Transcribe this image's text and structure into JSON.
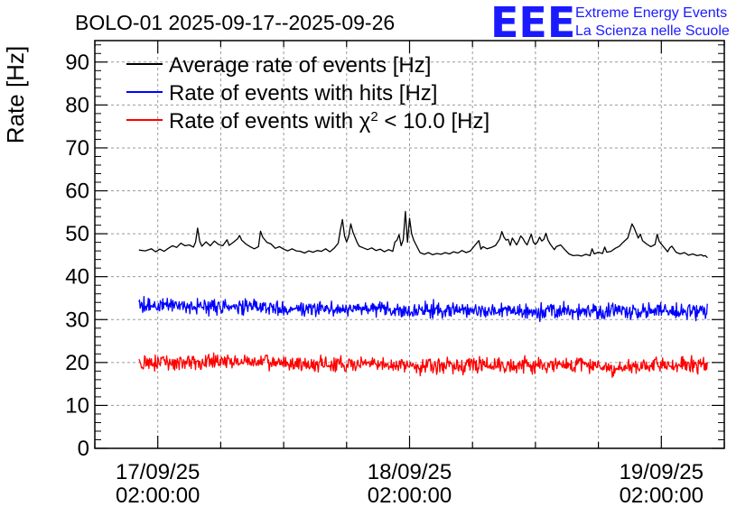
{
  "logo": {
    "mark": "EEE",
    "line1": "Extreme Energy Events",
    "line2": "La Scienza nelle Scuole",
    "color": "#1a1aff"
  },
  "chart_data": {
    "type": "line",
    "title": "BOLO-01 2025-09-17--2025-09-26",
    "ylabel": "Rate [Hz]",
    "xlabel": "",
    "ylim": [
      0,
      95
    ],
    "y_ticks": [
      0,
      10,
      20,
      30,
      40,
      50,
      60,
      70,
      80,
      90
    ],
    "x_range_hours": [
      -3,
      27
    ],
    "x_major_ticks": [
      {
        "hour": 0,
        "date": "17/09/25",
        "time": "02:00:00"
      },
      {
        "hour": 12,
        "date": "18/09/25",
        "time": "02:00:00"
      },
      {
        "hour": 24,
        "date": "19/09/25",
        "time": "02:00:00"
      }
    ],
    "grid": true,
    "legend_position": "top-left",
    "series": [
      {
        "name_parts": [
          "Average rate of events [Hz]"
        ],
        "color": "#000000",
        "noise": 0,
        "points": [
          [
            -0.9,
            46.2
          ],
          [
            -0.6,
            46.0
          ],
          [
            -0.3,
            46.5
          ],
          [
            -0.1,
            45.8
          ],
          [
            0.1,
            46.4
          ],
          [
            0.3,
            45.9
          ],
          [
            0.5,
            46.6
          ],
          [
            0.7,
            47.2
          ],
          [
            0.9,
            46.8
          ],
          [
            1.1,
            47.8
          ],
          [
            1.3,
            47.2
          ],
          [
            1.5,
            47.4
          ],
          [
            1.7,
            46.9
          ],
          [
            1.8,
            48.0
          ],
          [
            1.9,
            51.3
          ],
          [
            2.0,
            48.2
          ],
          [
            2.1,
            47.1
          ],
          [
            2.3,
            48.1
          ],
          [
            2.5,
            47.2
          ],
          [
            2.7,
            48.3
          ],
          [
            2.9,
            47.5
          ],
          [
            3.1,
            47.2
          ],
          [
            3.3,
            48.6
          ],
          [
            3.4,
            47.3
          ],
          [
            3.6,
            48.0
          ],
          [
            3.8,
            48.8
          ],
          [
            3.9,
            49.6
          ],
          [
            4.0,
            48.5
          ],
          [
            4.2,
            47.6
          ],
          [
            4.4,
            47.0
          ],
          [
            4.6,
            46.5
          ],
          [
            4.8,
            47.0
          ],
          [
            4.9,
            50.6
          ],
          [
            5.0,
            49.2
          ],
          [
            5.2,
            48.0
          ],
          [
            5.4,
            47.6
          ],
          [
            5.6,
            46.6
          ],
          [
            5.8,
            47.0
          ],
          [
            6.0,
            46.4
          ],
          [
            6.2,
            46.0
          ],
          [
            6.4,
            46.5
          ],
          [
            6.6,
            46.0
          ],
          [
            6.8,
            45.9
          ],
          [
            7.0,
            45.5
          ],
          [
            7.2,
            46.0
          ],
          [
            7.4,
            45.7
          ],
          [
            7.6,
            46.1
          ],
          [
            7.8,
            45.9
          ],
          [
            8.0,
            46.5
          ],
          [
            8.2,
            45.8
          ],
          [
            8.4,
            46.6
          ],
          [
            8.6,
            47.8
          ],
          [
            8.7,
            50.8
          ],
          [
            8.8,
            53.3
          ],
          [
            8.9,
            49.5
          ],
          [
            9.0,
            48.1
          ],
          [
            9.1,
            49.4
          ],
          [
            9.2,
            52.3
          ],
          [
            9.3,
            50.4
          ],
          [
            9.4,
            49.2
          ],
          [
            9.5,
            48.0
          ],
          [
            9.6,
            47.1
          ],
          [
            9.8,
            46.7
          ],
          [
            10.0,
            46.3
          ],
          [
            10.2,
            46.7
          ],
          [
            10.4,
            46.1
          ],
          [
            10.6,
            46.4
          ],
          [
            10.8,
            45.8
          ],
          [
            11.0,
            46.3
          ],
          [
            11.2,
            45.9
          ],
          [
            11.3,
            48.0
          ],
          [
            11.4,
            48.5
          ],
          [
            11.5,
            49.8
          ],
          [
            11.6,
            47.2
          ],
          [
            11.7,
            48.6
          ],
          [
            11.8,
            55.2
          ],
          [
            11.9,
            48.0
          ],
          [
            12.0,
            53.6
          ],
          [
            12.1,
            50.0
          ],
          [
            12.2,
            48.5
          ],
          [
            12.3,
            47.5
          ],
          [
            12.5,
            45.6
          ],
          [
            12.7,
            45.2
          ],
          [
            12.9,
            45.6
          ],
          [
            13.1,
            45.1
          ],
          [
            13.3,
            45.4
          ],
          [
            13.5,
            45.2
          ],
          [
            13.7,
            45.6
          ],
          [
            13.9,
            45.3
          ],
          [
            14.1,
            45.8
          ],
          [
            14.3,
            45.5
          ],
          [
            14.5,
            46.1
          ],
          [
            14.7,
            45.6
          ],
          [
            14.9,
            46.0
          ],
          [
            15.1,
            47.2
          ],
          [
            15.3,
            48.4
          ],
          [
            15.4,
            46.4
          ],
          [
            15.5,
            47.0
          ],
          [
            15.7,
            46.5
          ],
          [
            15.9,
            46.8
          ],
          [
            16.1,
            47.3
          ],
          [
            16.3,
            48.8
          ],
          [
            16.4,
            50.5
          ],
          [
            16.5,
            49.2
          ],
          [
            16.6,
            48.5
          ],
          [
            16.7,
            48.7
          ],
          [
            16.8,
            47.3
          ],
          [
            16.9,
            49.0
          ],
          [
            17.0,
            48.2
          ],
          [
            17.1,
            47.4
          ],
          [
            17.2,
            48.3
          ],
          [
            17.3,
            49.5
          ],
          [
            17.4,
            48.9
          ],
          [
            17.5,
            48.0
          ],
          [
            17.6,
            47.4
          ],
          [
            17.7,
            48.6
          ],
          [
            17.8,
            49.9
          ],
          [
            17.9,
            48.0
          ],
          [
            18.0,
            47.5
          ],
          [
            18.1,
            48.1
          ],
          [
            18.2,
            49.2
          ],
          [
            18.3,
            48.3
          ],
          [
            18.4,
            48.7
          ],
          [
            18.5,
            50.1
          ],
          [
            18.6,
            48.5
          ],
          [
            18.7,
            47.6
          ],
          [
            18.9,
            46.3
          ],
          [
            19.0,
            47.0
          ],
          [
            19.2,
            47.4
          ],
          [
            19.4,
            46.3
          ],
          [
            19.6,
            45.3
          ],
          [
            19.8,
            44.9
          ],
          [
            20.0,
            45.0
          ],
          [
            20.2,
            44.8
          ],
          [
            20.4,
            45.2
          ],
          [
            20.6,
            44.9
          ],
          [
            20.7,
            46.5
          ],
          [
            20.8,
            45.3
          ],
          [
            21.0,
            45.7
          ],
          [
            21.2,
            45.4
          ],
          [
            21.3,
            46.9
          ],
          [
            21.4,
            45.7
          ],
          [
            21.6,
            45.9
          ],
          [
            21.8,
            46.6
          ],
          [
            22.0,
            47.1
          ],
          [
            22.2,
            48.1
          ],
          [
            22.4,
            49.0
          ],
          [
            22.5,
            50.6
          ],
          [
            22.6,
            52.3
          ],
          [
            22.7,
            51.4
          ],
          [
            22.8,
            50.2
          ],
          [
            22.9,
            49.0
          ],
          [
            23.0,
            49.9
          ],
          [
            23.1,
            48.4
          ],
          [
            23.3,
            47.6
          ],
          [
            23.5,
            47.0
          ],
          [
            23.7,
            47.5
          ],
          [
            23.8,
            49.9
          ],
          [
            23.9,
            48.2
          ],
          [
            24.1,
            47.0
          ],
          [
            24.3,
            45.8
          ],
          [
            24.4,
            46.7
          ],
          [
            24.5,
            47.1
          ],
          [
            24.7,
            45.7
          ],
          [
            24.9,
            45.3
          ],
          [
            25.1,
            45.6
          ],
          [
            25.3,
            45.0
          ],
          [
            25.5,
            45.3
          ],
          [
            25.7,
            44.9
          ],
          [
            25.9,
            45.1
          ],
          [
            26.0,
            44.8
          ],
          [
            26.1,
            44.9
          ],
          [
            26.2,
            44.4
          ]
        ]
      },
      {
        "name_parts": [
          "Rate of events with hits [Hz]"
        ],
        "color": "#0000ff",
        "noise": 1.8,
        "points": [
          [
            -0.9,
            33.4
          ],
          [
            2,
            33.0
          ],
          [
            6,
            32.7
          ],
          [
            10,
            32.5
          ],
          [
            12,
            32.0
          ],
          [
            14,
            32.2
          ],
          [
            16,
            32.0
          ],
          [
            18,
            31.8
          ],
          [
            20,
            32.0
          ],
          [
            22,
            32.1
          ],
          [
            24,
            31.9
          ],
          [
            26.2,
            31.9
          ]
        ]
      },
      {
        "name_parts": [
          "Rate of events with χ",
          "2",
          " < 10.0 [Hz]"
        ],
        "color": "#ff0000",
        "noise": 1.8,
        "points": [
          [
            -0.9,
            19.8
          ],
          [
            1,
            20.0
          ],
          [
            2,
            20.3
          ],
          [
            4,
            20.2
          ],
          [
            6,
            19.8
          ],
          [
            7,
            19.6
          ],
          [
            9,
            19.5
          ],
          [
            10,
            19.6
          ],
          [
            12,
            19.3
          ],
          [
            14,
            19.2
          ],
          [
            15,
            19.6
          ],
          [
            17,
            19.4
          ],
          [
            19,
            19.3
          ],
          [
            20,
            19.6
          ],
          [
            21,
            19.4
          ],
          [
            22,
            18.4
          ],
          [
            23,
            19.0
          ],
          [
            24,
            19.3
          ],
          [
            26.2,
            19.4
          ]
        ]
      }
    ]
  }
}
